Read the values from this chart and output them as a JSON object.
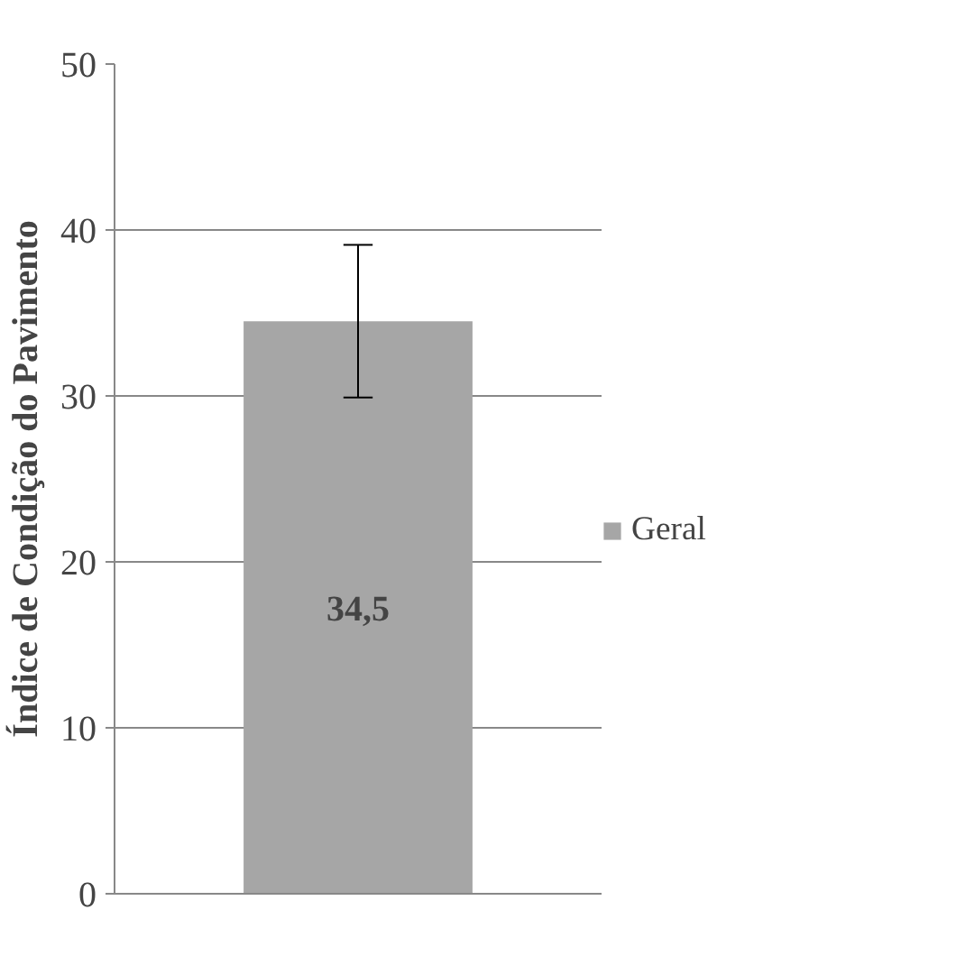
{
  "chart_data": {
    "type": "bar",
    "ylabel": "Índice de Condição do Pavimento",
    "categories": [
      null
    ],
    "series": [
      {
        "name": "Geral",
        "color": "#a6a6a6",
        "values": [
          34.5
        ],
        "errors": [
          4.6
        ],
        "value_labels": [
          "34,5"
        ]
      }
    ],
    "ylim": [
      0,
      50
    ],
    "yticks": [
      0,
      10,
      20,
      30,
      40,
      50
    ],
    "grid": "y",
    "legend": "right"
  }
}
